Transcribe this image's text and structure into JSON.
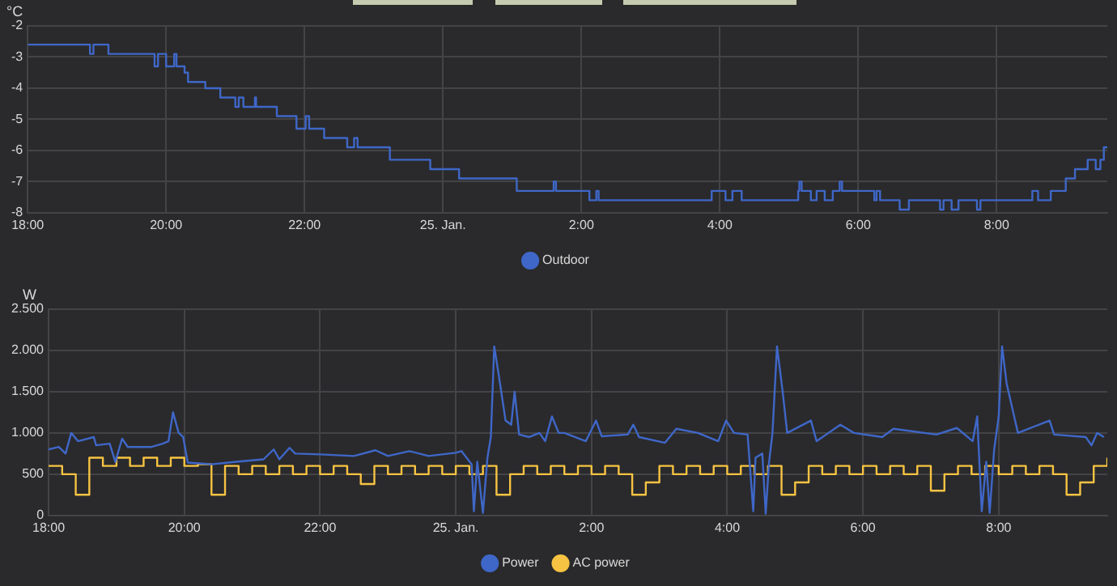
{
  "chart_data": [
    {
      "type": "line",
      "ylabel": "°C",
      "xlim": [
        "--01-24T18:00",
        "--01-25T09:36"
      ],
      "xticks": [
        {
          "value": "--01-24T18:00",
          "label": "18:00"
        },
        {
          "value": "--01-24T20:00",
          "label": "20:00"
        },
        {
          "value": "--01-24T22:00",
          "label": "22:00"
        },
        {
          "value": "--01-25T00:00",
          "label": "25. Jan."
        },
        {
          "value": "--01-25T02:00",
          "label": "2:00"
        },
        {
          "value": "--01-25T04:00",
          "label": "4:00"
        },
        {
          "value": "--01-25T06:00",
          "label": "6:00"
        },
        {
          "value": "--01-25T08:00",
          "label": "8:00"
        }
      ],
      "ylim": [
        -8,
        -2
      ],
      "yticks": [
        -8,
        -7,
        -6,
        -5,
        -4,
        -3,
        -2
      ],
      "grid": true,
      "legend": "bottom",
      "series": [
        {
          "name": "Outdoor",
          "color": "#3f67c8",
          "type": "step",
          "x": [
            "--01-24T18:00",
            "--01-24T18:54",
            "--01-24T18:57",
            "--01-24T19:10",
            "--01-24T19:50",
            "--01-24T19:53",
            "--01-24T20:00",
            "--01-24T20:07",
            "--01-24T20:09",
            "--01-24T20:16",
            "--01-24T20:19",
            "--01-24T20:34",
            "--01-24T20:47",
            "--01-24T21:00",
            "--01-24T21:03",
            "--01-24T21:07",
            "--01-24T21:17",
            "--01-24T21:18",
            "--01-24T21:36",
            "--01-24T21:53",
            "--01-24T22:01",
            "--01-24T22:04",
            "--01-24T22:17",
            "--01-24T22:37",
            "--01-24T22:43",
            "--01-24T22:46",
            "--01-24T23:14",
            "--01-24T23:49",
            "--01-25T00:14",
            "--01-25T01:04",
            "--01-25T01:36",
            "--01-25T01:38",
            "--01-25T02:07",
            "--01-25T02:13",
            "--01-25T02:15",
            "--01-25T03:53",
            "--01-25T04:05",
            "--01-25T04:11",
            "--01-25T04:19",
            "--01-25T05:08",
            "--01-25T05:09",
            "--01-25T05:11",
            "--01-25T05:19",
            "--01-25T05:24",
            "--01-25T05:31",
            "--01-25T05:38",
            "--01-25T05:44",
            "--01-25T05:46",
            "--01-25T06:14",
            "--01-25T06:16",
            "--01-25T06:19",
            "--01-25T06:36",
            "--01-25T06:44",
            "--01-25T07:11",
            "--01-25T07:14",
            "--01-25T07:21",
            "--01-25T07:27",
            "--01-25T07:43",
            "--01-25T07:46",
            "--01-25T08:31",
            "--01-25T08:36",
            "--01-25T08:47",
            "--01-25T09:00",
            "--01-25T09:08",
            "--01-25T09:19",
            "--01-25T09:26",
            "--01-25T09:30",
            "--01-25T09:33",
            "--01-25T09:36"
          ],
          "values": [
            -2.6,
            -2.9,
            -2.6,
            -2.9,
            -3.3,
            -2.9,
            -3.3,
            -2.9,
            -3.3,
            -3.5,
            -3.8,
            -4.0,
            -4.3,
            -4.6,
            -4.3,
            -4.6,
            -4.3,
            -4.6,
            -4.9,
            -5.3,
            -4.9,
            -5.3,
            -5.6,
            -5.9,
            -5.6,
            -5.9,
            -6.3,
            -6.6,
            -6.9,
            -7.3,
            -7.0,
            -7.3,
            -7.6,
            -7.3,
            -7.6,
            -7.3,
            -7.6,
            -7.3,
            -7.6,
            -7.3,
            -7.0,
            -7.3,
            -7.6,
            -7.3,
            -7.6,
            -7.3,
            -7.0,
            -7.3,
            -7.6,
            -7.3,
            -7.6,
            -7.9,
            -7.6,
            -7.9,
            -7.6,
            -7.9,
            -7.6,
            -7.9,
            -7.6,
            -7.3,
            -7.6,
            -7.3,
            -6.9,
            -6.6,
            -6.3,
            -6.6,
            -6.3,
            -5.9,
            -5.9
          ]
        }
      ]
    },
    {
      "type": "line",
      "ylabel": "W",
      "xlim": [
        "--01-24T18:00",
        "--01-25T09:36"
      ],
      "xticks": [
        {
          "value": "--01-24T18:00",
          "label": "18:00"
        },
        {
          "value": "--01-24T20:00",
          "label": "20:00"
        },
        {
          "value": "--01-24T22:00",
          "label": "22:00"
        },
        {
          "value": "--01-25T00:00",
          "label": "25. Jan."
        },
        {
          "value": "--01-25T02:00",
          "label": "2:00"
        },
        {
          "value": "--01-25T04:00",
          "label": "4:00"
        },
        {
          "value": "--01-25T06:00",
          "label": "6:00"
        },
        {
          "value": "--01-25T08:00",
          "label": "8:00"
        }
      ],
      "ylim": [
        0,
        2500
      ],
      "yticks": [
        0,
        500,
        {
          "value": 1000,
          "label": "1.000"
        },
        {
          "value": 1500,
          "label": "1.500"
        },
        {
          "value": 2000,
          "label": "2.000"
        },
        {
          "value": 2500,
          "label": "2.500"
        }
      ],
      "grid": true,
      "legend": "bottom",
      "series": [
        {
          "name": "Power",
          "color": "#3f67c8",
          "type": "line",
          "x": [
            "--01-24T18:00",
            "--01-24T18:09",
            "--01-24T18:15",
            "--01-24T18:20",
            "--01-24T18:26",
            "--01-24T18:40",
            "--01-24T18:42",
            "--01-24T18:54",
            "--01-24T18:59",
            "--01-24T19:05",
            "--01-24T19:10",
            "--01-24T19:31",
            "--01-24T19:41",
            "--01-24T19:46",
            "--01-24T19:50",
            "--01-24T19:55",
            "--01-24T19:59",
            "--01-24T20:03",
            "--01-24T20:24",
            "--01-24T20:46",
            "--01-24T21:10",
            "--01-24T21:19",
            "--01-24T21:24",
            "--01-24T21:33",
            "--01-24T21:38",
            "--01-24T22:00",
            "--01-24T22:30",
            "--01-24T22:49",
            "--01-24T23:00",
            "--01-24T23:19",
            "--01-24T23:36",
            "--01-25T00:00",
            "--01-25T00:05",
            "--01-25T00:14",
            "--01-25T00:16",
            "--01-25T00:19",
            "--01-25T00:24",
            "--01-25T00:28",
            "--01-25T00:31",
            "--01-25T00:34",
            "--01-25T00:38",
            "--01-25T00:44",
            "--01-25T00:49",
            "--01-25T00:52",
            "--01-25T00:56",
            "--01-25T01:05",
            "--01-25T01:14",
            "--01-25T01:19",
            "--01-25T01:25",
            "--01-25T01:31",
            "--01-25T01:36",
            "--01-25T01:55",
            "--01-25T02:04",
            "--01-25T02:09",
            "--01-25T02:32",
            "--01-25T02:37",
            "--01-25T02:42",
            "--01-25T03:05",
            "--01-25T03:15",
            "--01-25T03:34",
            "--01-25T03:52",
            "--01-25T03:59",
            "--01-25T04:06",
            "--01-25T04:18",
            "--01-25T04:23",
            "--01-25T04:25",
            "--01-25T04:31",
            "--01-25T04:34",
            "--01-25T04:37",
            "--01-25T04:40",
            "--01-25T04:44",
            "--01-25T04:49",
            "--01-25T04:53",
            "--01-25T05:14",
            "--01-25T05:19",
            "--01-25T05:40",
            "--01-25T05:52",
            "--01-25T06:17",
            "--01-25T06:27",
            "--01-25T07:05",
            "--01-25T07:23",
            "--01-25T07:37",
            "--01-25T07:41",
            "--01-25T07:45",
            "--01-25T07:49",
            "--01-25T07:52",
            "--01-25T07:56",
            "--01-25T08:00",
            "--01-25T08:03",
            "--01-25T08:07",
            "--01-25T08:17",
            "--01-25T08:45",
            "--01-25T08:49",
            "--01-25T09:17",
            "--01-25T09:22",
            "--01-25T09:27",
            "--01-25T09:33"
          ],
          "values": [
            800,
            830,
            750,
            1000,
            900,
            950,
            850,
            870,
            650,
            930,
            830,
            830,
            870,
            900,
            1250,
            1000,
            950,
            640,
            620,
            650,
            680,
            800,
            680,
            820,
            750,
            740,
            720,
            790,
            720,
            780,
            720,
            760,
            780,
            620,
            50,
            650,
            30,
            700,
            950,
            2050,
            1700,
            1150,
            1100,
            1500,
            980,
            950,
            1000,
            900,
            1200,
            1000,
            1000,
            900,
            1150,
            960,
            980,
            1100,
            950,
            880,
            1050,
            1000,
            900,
            1150,
            1000,
            980,
            50,
            700,
            750,
            20,
            650,
            1000,
            2050,
            1500,
            1000,
            1150,
            900,
            1100,
            1000,
            950,
            1050,
            980,
            1060,
            900,
            1200,
            50,
            650,
            30,
            800,
            1200,
            2050,
            1600,
            1000,
            1150,
            980,
            950,
            850,
            1000,
            950
          ]
        },
        {
          "name": "AC power",
          "color": "#f7c342",
          "type": "step",
          "x": [
            "--01-24T18:00",
            "--01-24T18:12",
            "--01-24T18:24",
            "--01-24T18:36",
            "--01-24T18:48",
            "--01-24T19:00",
            "--01-24T19:12",
            "--01-24T19:24",
            "--01-24T19:36",
            "--01-24T19:48",
            "--01-24T20:00",
            "--01-24T20:12",
            "--01-24T20:24",
            "--01-24T20:36",
            "--01-24T20:48",
            "--01-24T21:00",
            "--01-24T21:12",
            "--01-24T21:24",
            "--01-24T21:36",
            "--01-24T21:48",
            "--01-24T22:00",
            "--01-24T22:12",
            "--01-24T22:24",
            "--01-24T22:36",
            "--01-24T22:48",
            "--01-24T23:00",
            "--01-24T23:12",
            "--01-24T23:24",
            "--01-24T23:36",
            "--01-24T23:48",
            "--01-25T00:00",
            "--01-25T00:12",
            "--01-25T00:24",
            "--01-25T00:36",
            "--01-25T00:48",
            "--01-25T01:00",
            "--01-25T01:12",
            "--01-25T01:24",
            "--01-25T01:36",
            "--01-25T01:48",
            "--01-25T02:00",
            "--01-25T02:12",
            "--01-25T02:24",
            "--01-25T02:36",
            "--01-25T02:48",
            "--01-25T03:00",
            "--01-25T03:12",
            "--01-25T03:24",
            "--01-25T03:36",
            "--01-25T03:48",
            "--01-25T04:00",
            "--01-25T04:12",
            "--01-25T04:24",
            "--01-25T04:36",
            "--01-25T04:48",
            "--01-25T05:00",
            "--01-25T05:12",
            "--01-25T05:24",
            "--01-25T05:36",
            "--01-25T05:48",
            "--01-25T06:00",
            "--01-25T06:12",
            "--01-25T06:24",
            "--01-25T06:36",
            "--01-25T06:48",
            "--01-25T07:00",
            "--01-25T07:12",
            "--01-25T07:24",
            "--01-25T07:36",
            "--01-25T07:48",
            "--01-25T08:00",
            "--01-25T08:12",
            "--01-25T08:24",
            "--01-25T08:36",
            "--01-25T08:48",
            "--01-25T09:00",
            "--01-25T09:12",
            "--01-25T09:24",
            "--01-25T09:36"
          ],
          "values": [
            600,
            500,
            250,
            700,
            600,
            700,
            600,
            700,
            600,
            700,
            600,
            620,
            250,
            600,
            500,
            600,
            500,
            600,
            500,
            600,
            500,
            600,
            500,
            380,
            600,
            500,
            600,
            500,
            600,
            500,
            600,
            500,
            600,
            250,
            500,
            600,
            500,
            600,
            500,
            600,
            500,
            600,
            500,
            250,
            400,
            600,
            500,
            600,
            500,
            600,
            500,
            600,
            500,
            600,
            250,
            400,
            600,
            500,
            600,
            500,
            600,
            500,
            600,
            500,
            600,
            300,
            500,
            600,
            500,
            600,
            500,
            600,
            500,
            600,
            500,
            250,
            400,
            600,
            700
          ]
        }
      ]
    }
  ]
}
